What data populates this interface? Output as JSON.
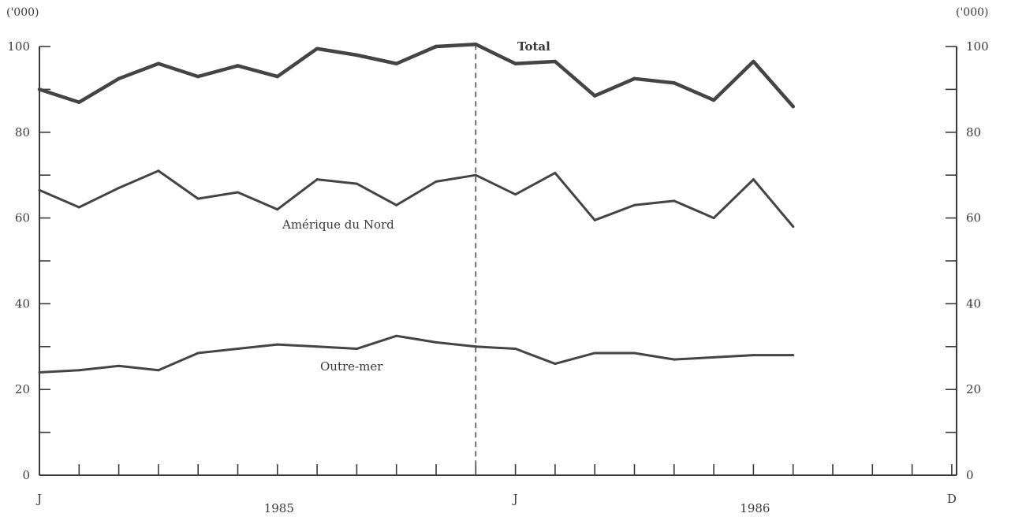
{
  "chart_data": {
    "type": "line",
    "y_unit_left": "('000)",
    "y_unit_right": "('000)",
    "ylim": [
      0,
      100
    ],
    "yticks": [
      0,
      20,
      40,
      60,
      80,
      100
    ],
    "month_markers": [
      {
        "month": 0,
        "label": "J"
      },
      {
        "month": 12,
        "label": "J"
      },
      {
        "month": 23,
        "label": "D"
      }
    ],
    "year_labels": [
      {
        "month": 6,
        "label": "1985"
      },
      {
        "month": 18,
        "label": "1986"
      }
    ],
    "x": [
      "1985-01",
      "1985-02",
      "1985-03",
      "1985-04",
      "1985-05",
      "1985-06",
      "1985-07",
      "1985-08",
      "1985-09",
      "1985-10",
      "1985-11",
      "1985-12",
      "1986-01",
      "1986-02",
      "1986-03",
      "1986-04",
      "1986-05",
      "1986-06",
      "1986-07",
      "1986-08"
    ],
    "divider_month": 11,
    "series": [
      {
        "name": "Total",
        "emphasis": true,
        "values": [
          90,
          87,
          92.5,
          96,
          93,
          95.5,
          93,
          99.5,
          98,
          96,
          100,
          100.5,
          96,
          96.5,
          88.5,
          92.5,
          91.5,
          87.5,
          96.5,
          86
        ]
      },
      {
        "name": "Amérique du Nord",
        "emphasis": false,
        "values": [
          66.5,
          62.5,
          67,
          71,
          64.5,
          66,
          62,
          69,
          68,
          63,
          68.5,
          70,
          65.5,
          70.5,
          59.5,
          63,
          64,
          60,
          69,
          58
        ]
      },
      {
        "name": "Outre-mer",
        "emphasis": false,
        "values": [
          24,
          24.5,
          25.5,
          24.5,
          28.5,
          29.5,
          30.5,
          30,
          29.5,
          32.5,
          31,
          30,
          29.5,
          26,
          28.5,
          28.5,
          27,
          27.5,
          28,
          28
        ]
      }
    ]
  }
}
